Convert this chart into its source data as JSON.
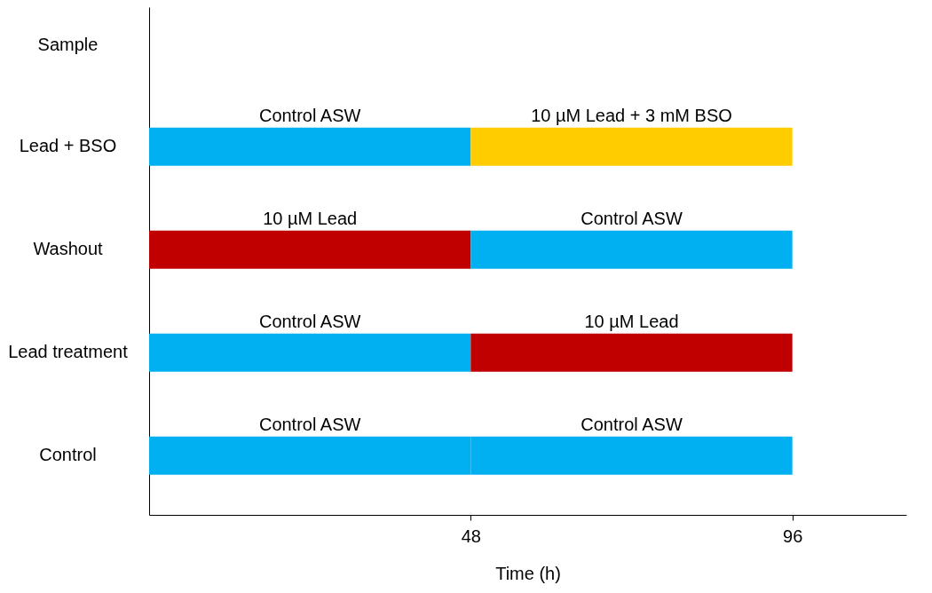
{
  "chart_data": {
    "type": "bar",
    "orientation": "horizontal",
    "stacked": true,
    "xlabel": "Time (h)",
    "ylabel": "Sample",
    "categories": [
      "Lead + BSO",
      "Washout",
      "Lead treatment",
      "Control"
    ],
    "series": [
      {
        "values": [
          48,
          48,
          48,
          48
        ],
        "colors": [
          "#00b0f0",
          "#c00000",
          "#00b0f0",
          "#00b0f0"
        ]
      },
      {
        "values": [
          48,
          48,
          48,
          48
        ],
        "colors": [
          "#ffcc00",
          "#00b0f0",
          "#c00000",
          "#00b0f0"
        ]
      }
    ],
    "annotations": [
      "Control ASW",
      "10 µM Lead + 3 mM BSO",
      "10 µM Lead",
      "Control ASW",
      "Control ASW",
      "10 µM Lead",
      "Control ASW",
      "Control ASW"
    ],
    "xlim": [
      0,
      113
    ],
    "xticks": [
      48,
      96
    ]
  }
}
